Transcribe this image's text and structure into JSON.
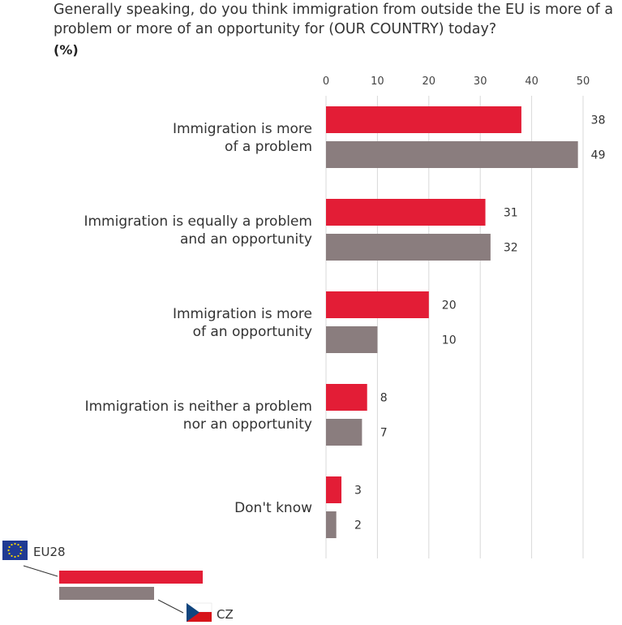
{
  "question": "Generally speaking, do you think immigration from outside the EU is more of a problem or more of an opportunity for (OUR COUNTRY) today?",
  "unit": "(%)",
  "colors": {
    "eu28": "#e31d36",
    "cz": "#8a7d7e",
    "grid": "#d9d9d9"
  },
  "chart_data": {
    "type": "bar",
    "orientation": "horizontal",
    "title": "Generally speaking, do you think immigration from outside the EU is more of a problem or more of an opportunity for (OUR COUNTRY) today?",
    "unit": "(%)",
    "categories": [
      [
        "Immigration is more",
        "of a problem"
      ],
      [
        "Immigration is equally a problem",
        "and an opportunity"
      ],
      [
        "Immigration is more",
        "of an opportunity"
      ],
      [
        "Immigration is neither a problem",
        "nor an opportunity"
      ],
      [
        "Don't know"
      ]
    ],
    "series": [
      {
        "name": "EU28",
        "values": [
          38,
          31,
          20,
          8,
          3
        ]
      },
      {
        "name": "CZ",
        "values": [
          49,
          32,
          10,
          7,
          2
        ]
      }
    ],
    "xlim": [
      0,
      50
    ],
    "xticks": [
      0,
      10,
      20,
      30,
      40,
      50
    ],
    "grid": true,
    "legend_position": "bottom-left"
  }
}
